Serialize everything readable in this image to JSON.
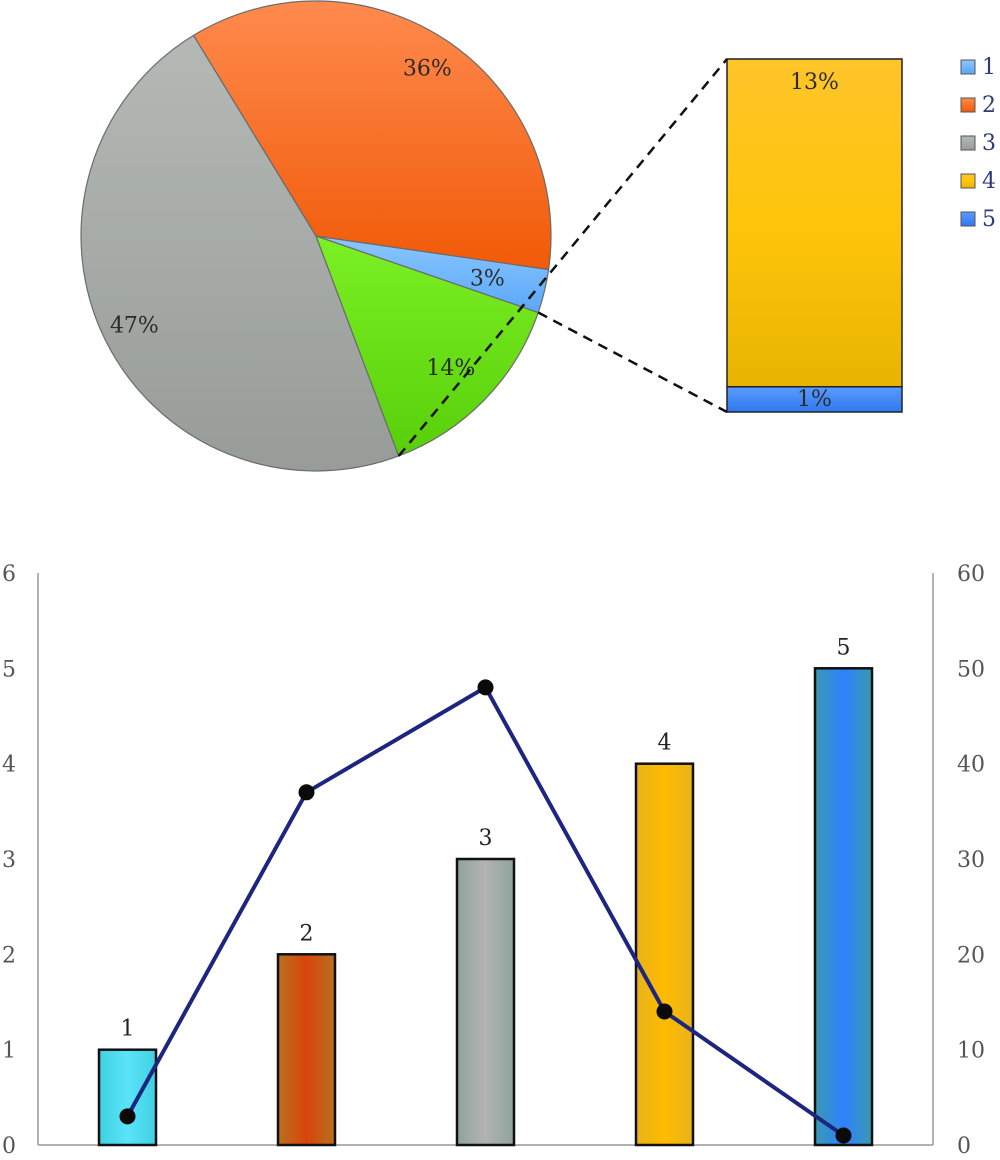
{
  "chart_data": [
    {
      "type": "pie",
      "slices": [
        {
          "label": "3%",
          "value": 3,
          "color": "#6fb6ff"
        },
        {
          "label": "36%",
          "value": 36,
          "color": "#f8621e"
        },
        {
          "label": "47%",
          "value": 47,
          "color": "#a9aeab"
        },
        {
          "label": "14%",
          "value": 14,
          "color": "#66e012"
        }
      ],
      "breakout": {
        "type": "bar",
        "stacked": true,
        "segments": [
          {
            "label": "13%",
            "value": 13,
            "color": "#fbbd10"
          },
          {
            "label": "1%",
            "value": 1,
            "color": "#3a85ff"
          }
        ]
      },
      "legend": {
        "position": "right",
        "entries": [
          {
            "label": "1",
            "color": "#6fb6ff"
          },
          {
            "label": "2",
            "color": "#f8621e"
          },
          {
            "label": "3",
            "color": "#a9aeab"
          },
          {
            "label": "4",
            "color": "#fbbd10"
          },
          {
            "label": "5",
            "color": "#3a85ff"
          }
        ]
      }
    },
    {
      "type": "bar",
      "categories": [
        "1",
        "2",
        "3",
        "4",
        "5"
      ],
      "values": [
        1,
        2,
        3,
        4,
        5
      ],
      "bar_labels": [
        "1",
        "2",
        "3",
        "4",
        "5"
      ],
      "bar_colors": [
        "#4ddcf2",
        "#d8500f",
        "#a8aca9",
        "#fbbd10",
        "#3a85ff"
      ],
      "ylim": [
        0,
        6
      ],
      "yticks": [
        "0",
        "1",
        "2",
        "3",
        "4",
        "5",
        "6"
      ],
      "line": {
        "values": [
          3,
          37,
          48,
          14,
          1
        ],
        "color": "#1c2580",
        "ylim": [
          0,
          60
        ],
        "yticks": [
          "0",
          "10",
          "20",
          "30",
          "40",
          "50",
          "60"
        ]
      },
      "grid": false
    }
  ]
}
